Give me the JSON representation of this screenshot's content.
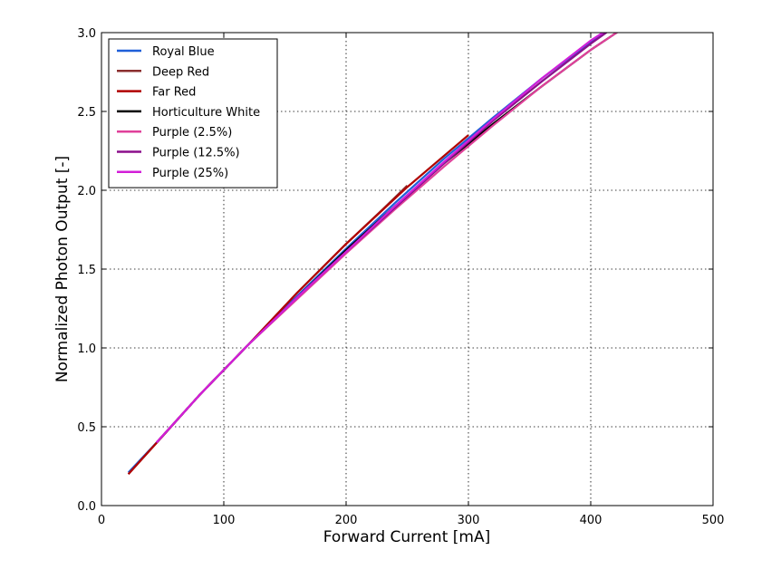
{
  "chart_data": {
    "type": "line",
    "title": "",
    "xlabel": "Forward Current [mA]",
    "ylabel": "Normalized Photon Output [-]",
    "xlim": [
      0,
      500
    ],
    "ylim": [
      0,
      3
    ],
    "xticks": [
      0,
      100,
      200,
      300,
      400,
      500
    ],
    "yticks": [
      0,
      0.5,
      1,
      1.5,
      2,
      2.5,
      3
    ],
    "xtick_labels": [
      "0",
      "100",
      "200",
      "300",
      "400",
      "500"
    ],
    "ytick_labels": [
      "0.0",
      "0.5",
      "1.0",
      "1.5",
      "2.0",
      "2.5",
      "3.0"
    ],
    "grid": true,
    "legend_position": "top-left",
    "series": [
      {
        "name": "Royal Blue",
        "color": "#1f5fd8",
        "x": [
          22,
          50,
          80,
          120,
          160,
          200,
          240,
          280,
          320,
          360,
          400,
          420
        ],
        "y": [
          0.21,
          0.44,
          0.7,
          1.02,
          1.33,
          1.63,
          1.92,
          2.2,
          2.46,
          2.71,
          2.94,
          3.04
        ]
      },
      {
        "name": "Deep Red",
        "color": "#8b2e2e",
        "x": [
          22,
          50,
          80,
          120,
          160,
          200,
          230,
          250
        ],
        "y": [
          0.2,
          0.44,
          0.7,
          1.02,
          1.35,
          1.66,
          1.88,
          2.03
        ]
      },
      {
        "name": "Far Red",
        "color": "#b00000",
        "x": [
          22,
          50,
          80,
          120,
          160,
          200,
          250,
          300
        ],
        "y": [
          0.2,
          0.44,
          0.7,
          1.02,
          1.35,
          1.66,
          2.02,
          2.35
        ]
      },
      {
        "name": "Horticulture White",
        "color": "#000000",
        "x": [
          45,
          80,
          120,
          160,
          200,
          240,
          280,
          320,
          360,
          400,
          425
        ],
        "y": [
          0.4,
          0.7,
          1.02,
          1.32,
          1.62,
          1.9,
          2.17,
          2.42,
          2.66,
          2.89,
          3.02
        ]
      },
      {
        "name": "Purple (2.5%)",
        "color": "#e0409a",
        "x": [
          45,
          80,
          120,
          160,
          200,
          240,
          280,
          320,
          360,
          400,
          425
        ],
        "y": [
          0.4,
          0.7,
          1.02,
          1.31,
          1.6,
          1.88,
          2.15,
          2.41,
          2.66,
          2.89,
          3.02
        ]
      },
      {
        "name": "Purple (12.5%)",
        "color": "#8b0f8b",
        "x": [
          45,
          80,
          120,
          160,
          200,
          240,
          280,
          320,
          360,
          400,
          420
        ],
        "y": [
          0.4,
          0.7,
          1.02,
          1.32,
          1.61,
          1.89,
          2.17,
          2.44,
          2.69,
          2.93,
          3.04
        ]
      },
      {
        "name": "Purple (25%)",
        "color": "#d21fd8",
        "x": [
          45,
          80,
          120,
          160,
          200,
          240,
          280,
          320,
          360,
          400,
          418
        ],
        "y": [
          0.4,
          0.7,
          1.02,
          1.32,
          1.61,
          1.9,
          2.18,
          2.45,
          2.71,
          2.95,
          3.04
        ]
      }
    ]
  }
}
